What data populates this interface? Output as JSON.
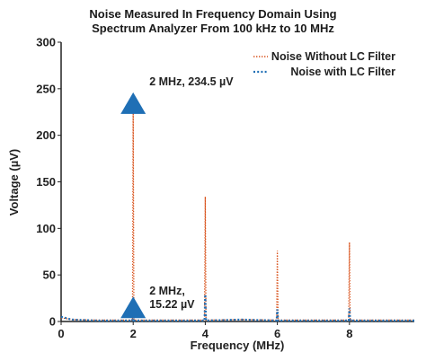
{
  "chart_data": {
    "type": "line",
    "title_line1": "Noise Measured In Frequency Domain Using",
    "title_line2": "Spectrum Analyzer From 100 kHz to 10 MHz",
    "xlabel": "Frequency (MHz)",
    "ylabel": "Voltage (µV)",
    "xlim": [
      0,
      9.8
    ],
    "ylim": [
      0,
      300
    ],
    "x_ticks": [
      0,
      2,
      4,
      6,
      8
    ],
    "y_ticks": [
      0,
      50,
      100,
      150,
      200,
      250,
      300
    ],
    "grid": false,
    "legend_position": "top-right",
    "series": [
      {
        "name": "Noise Without LC Filter",
        "color": "#d9541e",
        "style": "dotted",
        "points": [
          [
            0,
            4
          ],
          [
            0.3,
            2
          ],
          [
            1,
            1.5
          ],
          [
            1.98,
            1.5
          ],
          [
            2,
            234.5
          ],
          [
            2.02,
            1.5
          ],
          [
            3,
            1.5
          ],
          [
            3.98,
            1.5
          ],
          [
            4,
            134
          ],
          [
            4.02,
            1.5
          ],
          [
            5,
            2
          ],
          [
            5.98,
            1.5
          ],
          [
            6,
            76
          ],
          [
            6.02,
            1.5
          ],
          [
            7,
            1.5
          ],
          [
            7.98,
            1.5
          ],
          [
            8,
            85
          ],
          [
            8.02,
            1.5
          ],
          [
            9.8,
            1.5
          ]
        ]
      },
      {
        "name": "Noise with LC Filter",
        "color": "#1f6fb5",
        "style": "dotted",
        "points": [
          [
            0,
            5
          ],
          [
            0.3,
            2
          ],
          [
            1,
            1
          ],
          [
            1.98,
            1
          ],
          [
            2,
            15.22
          ],
          [
            2.02,
            1
          ],
          [
            3,
            1
          ],
          [
            3.98,
            1
          ],
          [
            4,
            29
          ],
          [
            4.02,
            1
          ],
          [
            5,
            2
          ],
          [
            5.98,
            1
          ],
          [
            6,
            13
          ],
          [
            6.02,
            1
          ],
          [
            7,
            1
          ],
          [
            7.98,
            1
          ],
          [
            8,
            14
          ],
          [
            8.02,
            1
          ],
          [
            9.8,
            1
          ]
        ]
      }
    ],
    "annotations": [
      {
        "text_lines": [
          "2 MHz, 234.5 µV"
        ],
        "x": 2,
        "y": 234.5,
        "marker": "triangle",
        "color": "#1f6fb5"
      },
      {
        "text_lines": [
          "2 MHz,",
          "15.22 µV"
        ],
        "x": 2,
        "y": 15.22,
        "marker": "triangle",
        "color": "#1f6fb5"
      }
    ]
  }
}
